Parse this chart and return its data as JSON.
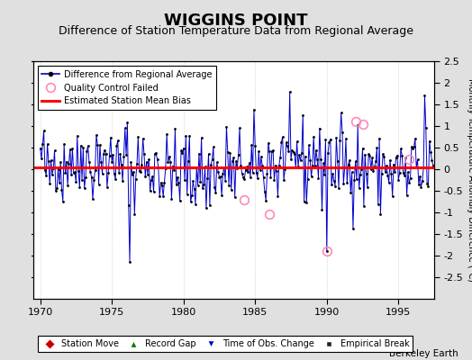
{
  "title": "WIGGINS POINT",
  "subtitle": "Difference of Station Temperature Data from Regional Average",
  "ylabel_right": "Monthly Temperature Anomaly Difference (°C)",
  "xlim": [
    1969.5,
    1997.5
  ],
  "ylim": [
    -3.0,
    2.5
  ],
  "yticks": [
    -2.5,
    -2,
    -1.5,
    -1,
    -0.5,
    0,
    0.5,
    1,
    1.5,
    2,
    2.5
  ],
  "ytick_labels": [
    "-2.5",
    "-2",
    "-1.5",
    "-1",
    "-0.5",
    "0",
    "0.5",
    "1",
    "1.5",
    "2",
    "2.5"
  ],
  "xticks": [
    1970,
    1975,
    1980,
    1985,
    1990,
    1995
  ],
  "mean_bias": 0.05,
  "bias_color": "#FF0000",
  "line_color": "#0000CC",
  "dot_color": "#000000",
  "qc_color": "#FF88BB",
  "background_color": "#E0E0E0",
  "plot_bg_color": "#FFFFFF",
  "title_fontsize": 13,
  "subtitle_fontsize": 9,
  "tick_fontsize": 8,
  "watermark": "Berkeley Earth",
  "seed": 42,
  "start_year": 1970.0,
  "end_year": 1997.5
}
